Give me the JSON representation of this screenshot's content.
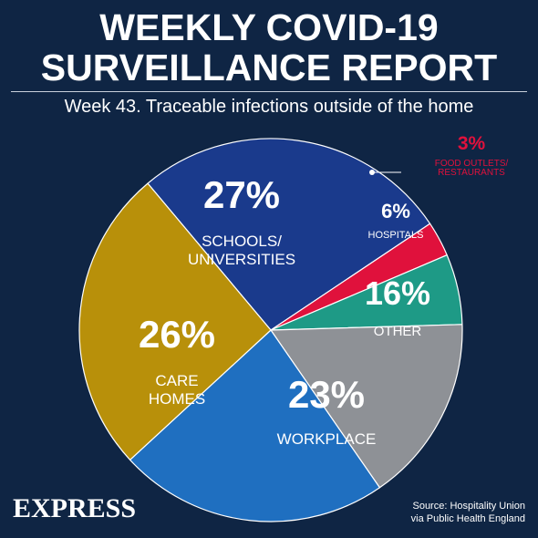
{
  "header": {
    "title_line1": "WEEKLY COVID-19",
    "title_line2": "SURVEILLANCE REPORT",
    "subtitle": "Week 43. Traceable infections outside of the home"
  },
  "chart_data": {
    "type": "pie",
    "title": "WEEKLY COVID-19 SURVEILLANCE REPORT",
    "subtitle": "Week 43. Traceable infections outside of the home",
    "unit": "%",
    "slices": [
      {
        "label_lines": [
          "SCHOOLS/",
          "UNIVERSITIES"
        ],
        "value": 27,
        "value_label": "27%",
        "color": "#1a3a8c",
        "label_color": "#ffffff"
      },
      {
        "label_lines": [
          "FOOD OUTLETS/",
          "RESTAURANTS"
        ],
        "value": 3,
        "value_label": "3%",
        "color": "#e0113c",
        "label_color": "#e0113c"
      },
      {
        "label_lines": [
          "HOSPITALS"
        ],
        "value": 6,
        "value_label": "6%",
        "color": "#1e9a86",
        "label_color": "#ffffff"
      },
      {
        "label_lines": [
          "OTHER"
        ],
        "value": 16,
        "value_label": "16%",
        "color": "#8e9196",
        "label_color": "#ffffff"
      },
      {
        "label_lines": [
          "WORKPLACE"
        ],
        "value": 23,
        "value_label": "23%",
        "color": "#1f6fc0",
        "label_color": "#ffffff"
      },
      {
        "label_lines": [
          "CARE",
          "HOMES"
        ],
        "value": 26,
        "value_label": "26%",
        "color": "#b8900a",
        "label_color": "#ffffff"
      }
    ]
  },
  "footer": {
    "brand": "EXPRESS",
    "source_line1": "Source: Hospitality Union",
    "source_line2": "via Public Health England"
  }
}
